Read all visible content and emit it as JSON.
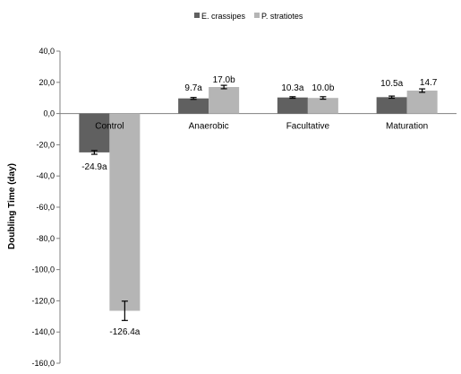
{
  "chart_data": {
    "type": "bar",
    "title": "",
    "xlabel": "",
    "ylabel": "Doubling Time (day)",
    "ylim": [
      -160,
      40
    ],
    "ytick_step": 20,
    "ytick_labels": [
      "40,0",
      "20,0",
      "0,0",
      "-20,0",
      "-40,0",
      "-60,0",
      "-80,0",
      "-100,0",
      "-120,0",
      "-140,0",
      "-160,0"
    ],
    "grid": false,
    "legend_position": "top-center",
    "categories": [
      "Control",
      "Anaerobic",
      "Facultative",
      "Maturation"
    ],
    "series": [
      {
        "name": "E. crassipes",
        "color": "#606060",
        "values": [
          -24.9,
          9.7,
          10.3,
          10.5
        ],
        "errors": [
          1.2,
          0.6,
          0.5,
          0.7
        ],
        "labels": [
          "-24.9a",
          "9.7a",
          "10.3a",
          "10.5a"
        ]
      },
      {
        "name": "P. stratiotes",
        "color": "#b5b5b5",
        "values": [
          -126.4,
          17.0,
          10.0,
          14.7
        ],
        "errors": [
          6.2,
          1.1,
          0.8,
          1.1
        ],
        "labels": [
          "-126.4a",
          "17.0b",
          "10.0b",
          "14.7"
        ]
      }
    ]
  }
}
